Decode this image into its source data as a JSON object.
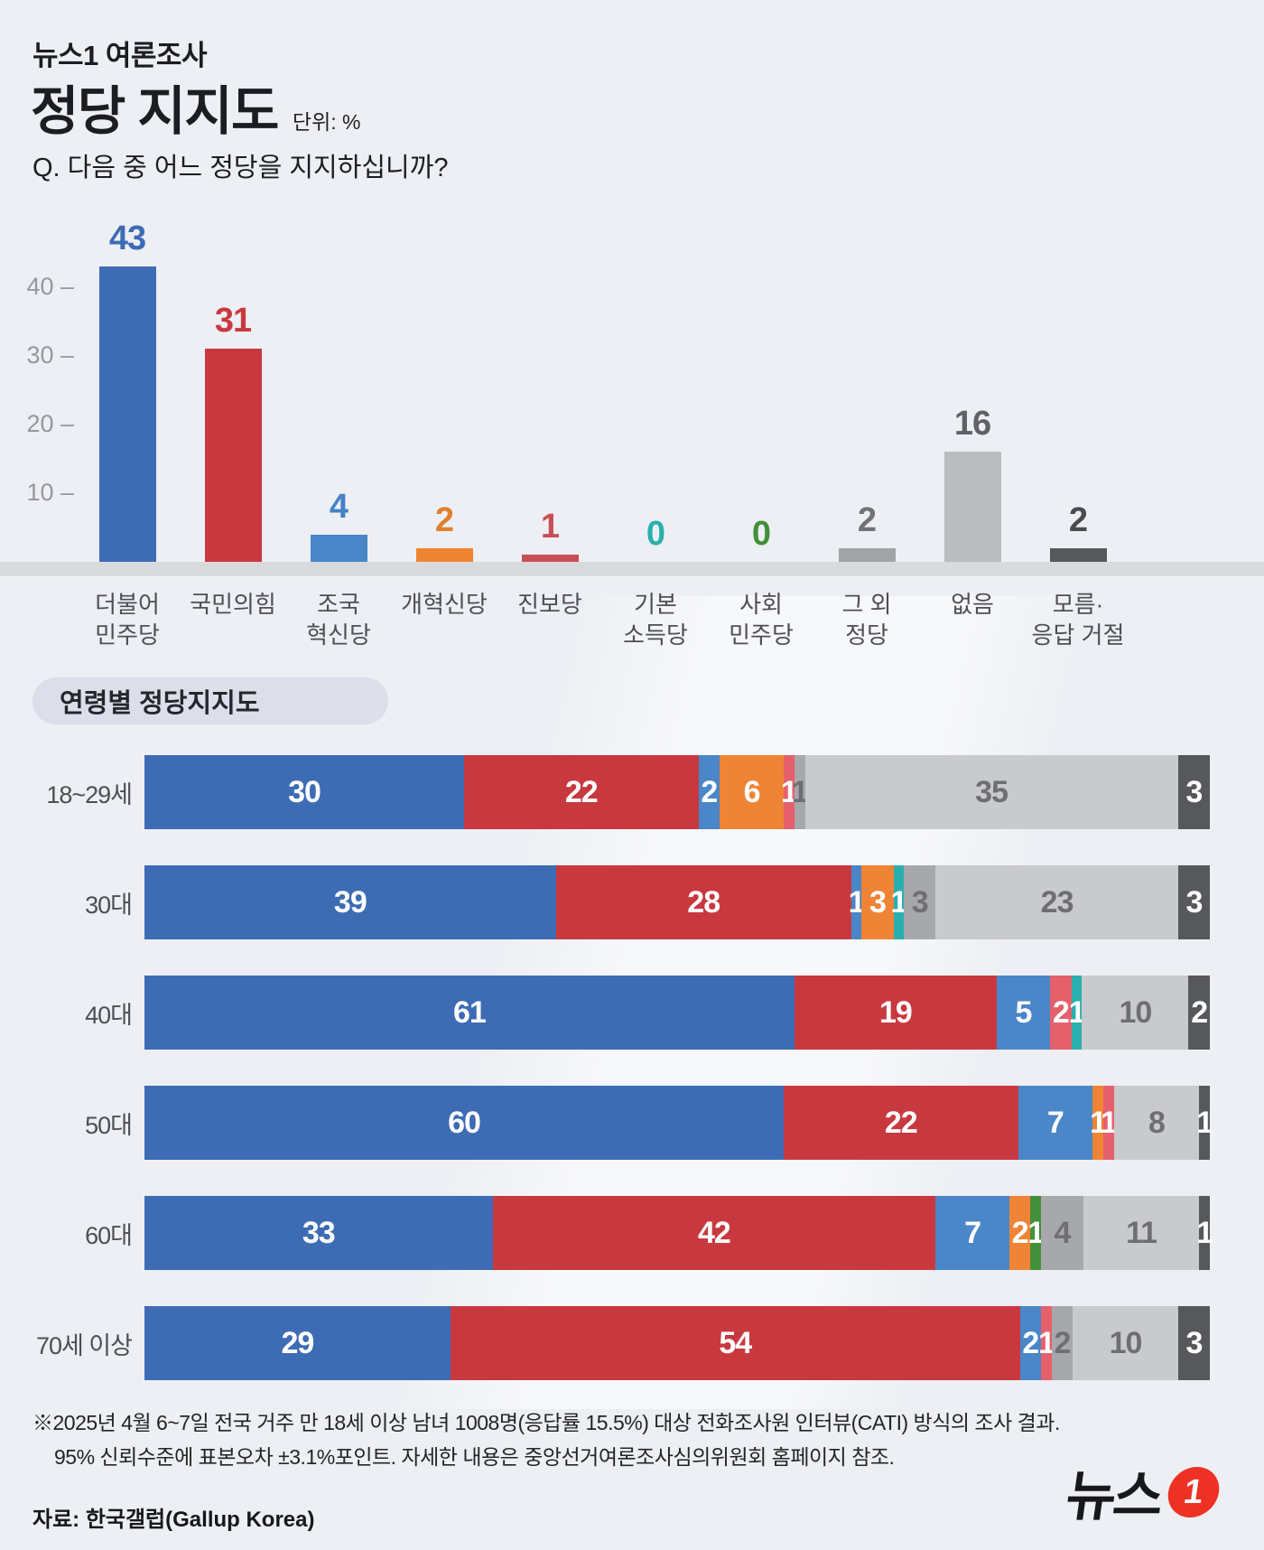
{
  "header": {
    "kicker": "뉴스1 여론조사",
    "title": "정당 지지도",
    "unit_label": "단위: %",
    "question": "Q. 다음 중 어느 정당을 지지하십니까?"
  },
  "section_age": {
    "pill_label": "연령별 정당지지도"
  },
  "footnote": {
    "line1": "※2025년 4월 6~7일 전국 거주 만 18세 이상 남녀 1008명(응답률 15.5%) 대상 전화조사원 인터뷰(CATI) 방식의 조사 결과.",
    "line2": "95% 신뢰수준에 표본오차 ±3.1%포인트. 자세한 내용은 중앙선거여론조사심의위원회 홈페이지 참조."
  },
  "source_label": "자료: 한국갤럽(Gallup Korea)",
  "logo": {
    "text": "뉴스",
    "badge": "1"
  },
  "colors": {
    "background": "#edeff4",
    "axis_band": "#d9dadd",
    "pill_bg": "#dcdee9",
    "logo_red": "#ee3124"
  },
  "chart_data": [
    {
      "type": "bar",
      "title": "정당 지지도",
      "unit": "%",
      "ylim": [
        0,
        47
      ],
      "yticks": [
        40,
        30,
        20,
        10
      ],
      "grid": false,
      "categories": [
        "더불어민주당",
        "국민의힘",
        "조국혁신당",
        "개혁신당",
        "진보당",
        "기본소득당",
        "사회민주당",
        "그 외 정당",
        "없음",
        "모름·응답 거절"
      ],
      "category_lines": [
        [
          "더불어",
          "민주당"
        ],
        [
          "국민의힘"
        ],
        [
          "조국",
          "혁신당"
        ],
        [
          "개혁신당"
        ],
        [
          "진보당"
        ],
        [
          "기본",
          "소득당"
        ],
        [
          "사회",
          "민주당"
        ],
        [
          "그 외",
          "정당"
        ],
        [
          "없음"
        ],
        [
          "모름·",
          "응답 거절"
        ]
      ],
      "values": [
        43,
        31,
        4,
        2,
        1,
        0,
        0,
        2,
        16,
        2
      ],
      "bar_colors": [
        "#3d6cb4",
        "#c8393f",
        "#4a86c8",
        "#ef8432",
        "#c94f56",
        "#29b0ae",
        "#43903a",
        "#a2a3a7",
        "#bbbcc0",
        "#57585c"
      ],
      "label_colors": [
        "#3d6cb4",
        "#c8393f",
        "#4382c4",
        "#e07f2e",
        "#c94f56",
        "#29b0ae",
        "#43903a",
        "#717277",
        "#606166",
        "#4a4b50"
      ]
    },
    {
      "type": "stacked-bar-horizontal",
      "title": "연령별 정당지지도",
      "unit": "%",
      "xlim": [
        0,
        100
      ],
      "palette": {
        "minjoo": "#3d6cb4",
        "ppp": "#c8393f",
        "joguk": "#4a86c8",
        "reform": "#f08436",
        "jinbo": "#e5606b",
        "basic": "#29b0ae",
        "social": "#43903a",
        "other": "#a7a8ac",
        "none": "#c9cacd",
        "dk": "#57585c"
      },
      "party_names": {
        "minjoo": "더불어민주당",
        "ppp": "국민의힘",
        "joguk": "조국혁신당",
        "reform": "개혁신당",
        "jinbo": "진보당",
        "basic": "기본소득당",
        "social": "사회민주당",
        "other": "그 외 정당",
        "none": "없음",
        "dk": "모름·응답 거절"
      },
      "gray_text_keys": [
        "other",
        "none"
      ],
      "gray_text_color": "#6e6f74",
      "rows": [
        {
          "label": "18~29세",
          "segments": [
            [
              "minjoo",
              30
            ],
            [
              "ppp",
              22
            ],
            [
              "joguk",
              2
            ],
            [
              "reform",
              6
            ],
            [
              "jinbo",
              1
            ],
            [
              "other",
              1
            ],
            [
              "none",
              35
            ],
            [
              "dk",
              3
            ]
          ]
        },
        {
          "label": "30대",
          "segments": [
            [
              "minjoo",
              39
            ],
            [
              "ppp",
              28
            ],
            [
              "joguk",
              1
            ],
            [
              "reform",
              3
            ],
            [
              "basic",
              1
            ],
            [
              "other",
              3
            ],
            [
              "none",
              23
            ],
            [
              "dk",
              3
            ]
          ]
        },
        {
          "label": "40대",
          "segments": [
            [
              "minjoo",
              61
            ],
            [
              "ppp",
              19
            ],
            [
              "joguk",
              5
            ],
            [
              "jinbo",
              2
            ],
            [
              "basic",
              1
            ],
            [
              "none",
              10
            ],
            [
              "dk",
              2
            ]
          ]
        },
        {
          "label": "50대",
          "segments": [
            [
              "minjoo",
              60
            ],
            [
              "ppp",
              22
            ],
            [
              "joguk",
              7
            ],
            [
              "reform",
              1
            ],
            [
              "jinbo",
              1
            ],
            [
              "none",
              8
            ],
            [
              "dk",
              1
            ]
          ]
        },
        {
          "label": "60대",
          "segments": [
            [
              "minjoo",
              33
            ],
            [
              "ppp",
              42
            ],
            [
              "joguk",
              7
            ],
            [
              "reform",
              2
            ],
            [
              "social",
              1
            ],
            [
              "other",
              4
            ],
            [
              "none",
              11
            ],
            [
              "dk",
              1
            ]
          ]
        },
        {
          "label": "70세 이상",
          "segments": [
            [
              "minjoo",
              29
            ],
            [
              "ppp",
              54
            ],
            [
              "joguk",
              2
            ],
            [
              "jinbo",
              1
            ],
            [
              "other",
              2
            ],
            [
              "none",
              10
            ],
            [
              "dk",
              3
            ]
          ]
        }
      ]
    }
  ]
}
